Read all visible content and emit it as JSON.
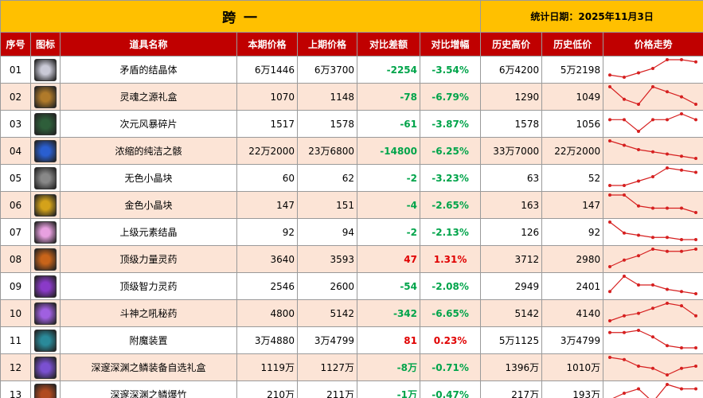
{
  "header": {
    "title": "跨 一",
    "date": "统计日期：2025年11月3日"
  },
  "table": {
    "columns": [
      "序号",
      "图标",
      "道具名称",
      "本期价格",
      "上期价格",
      "对比差额",
      "对比增幅",
      "历史高价",
      "历史低价",
      "价格走势"
    ],
    "rows": [
      {
        "no": "01",
        "name": "矛盾的结晶体",
        "cur": "6万1446",
        "prev": "6万3700",
        "diff": "-2254",
        "pct": "-3.54%",
        "high": "6万4200",
        "low": "5万2198",
        "trend": [
          2,
          1,
          3,
          5,
          9,
          9,
          8
        ]
      },
      {
        "no": "02",
        "name": "灵魂之源礼盒",
        "cur": "1070",
        "prev": "1148",
        "diff": "-78",
        "pct": "-6.79%",
        "high": "1290",
        "low": "1049",
        "trend": [
          8,
          3,
          1,
          8,
          6,
          4,
          1
        ]
      },
      {
        "no": "03",
        "name": "次元风暴碎片",
        "cur": "1517",
        "prev": "1578",
        "diff": "-61",
        "pct": "-3.87%",
        "high": "1578",
        "low": "1056",
        "trend": [
          5,
          5,
          1,
          5,
          5,
          7,
          5
        ]
      },
      {
        "no": "04",
        "name": "浓缩的纯洁之骸",
        "cur": "22万2000",
        "prev": "23万6800",
        "diff": "-14800",
        "pct": "-6.25%",
        "high": "33万7000",
        "low": "22万2000",
        "trend": [
          9,
          7,
          5,
          4,
          3,
          2,
          1
        ]
      },
      {
        "no": "05",
        "name": "无色小晶块",
        "cur": "60",
        "prev": "62",
        "diff": "-2",
        "pct": "-3.23%",
        "high": "63",
        "low": "52",
        "trend": [
          1,
          1,
          3,
          5,
          9,
          8,
          7
        ]
      },
      {
        "no": "06",
        "name": "金色小晶块",
        "cur": "147",
        "prev": "151",
        "diff": "-4",
        "pct": "-2.65%",
        "high": "163",
        "low": "147",
        "trend": [
          9,
          9,
          4,
          3,
          3,
          3,
          1
        ]
      },
      {
        "no": "07",
        "name": "上级元素结晶",
        "cur": "92",
        "prev": "94",
        "diff": "-2",
        "pct": "-2.13%",
        "high": "126",
        "low": "92",
        "trend": [
          9,
          4,
          3,
          2,
          2,
          1,
          1
        ]
      },
      {
        "no": "08",
        "name": "顶级力量灵药",
        "cur": "3640",
        "prev": "3593",
        "diff": "47",
        "pct": "1.31%",
        "high": "3712",
        "low": "2980",
        "trend": [
          1,
          4,
          6,
          9,
          8,
          8,
          9
        ]
      },
      {
        "no": "09",
        "name": "顶级智力灵药",
        "cur": "2546",
        "prev": "2600",
        "diff": "-54",
        "pct": "-2.08%",
        "high": "2949",
        "low": "2401",
        "trend": [
          2,
          9,
          5,
          5,
          3,
          2,
          1
        ]
      },
      {
        "no": "10",
        "name": "斗神之吼秘药",
        "cur": "4800",
        "prev": "5142",
        "diff": "-342",
        "pct": "-6.65%",
        "high": "5142",
        "low": "4140",
        "trend": [
          2,
          4,
          5,
          7,
          9,
          8,
          4
        ]
      },
      {
        "no": "11",
        "name": "附魔装置",
        "cur": "3万4880",
        "prev": "3万4799",
        "diff": "81",
        "pct": "0.23%",
        "high": "5万1125",
        "low": "3万4799",
        "trend": [
          8,
          8,
          9,
          6,
          2,
          1,
          1
        ]
      },
      {
        "no": "12",
        "name": "深邃深渊之鳞装备自选礼盒",
        "cur": "1119万",
        "prev": "1127万",
        "diff": "-8万",
        "pct": "-0.71%",
        "high": "1396万",
        "low": "1010万",
        "trend": [
          9,
          8,
          5,
          4,
          1,
          4,
          5
        ]
      },
      {
        "no": "13",
        "name": "深邃深渊之鳞爆竹",
        "cur": "210万",
        "prev": "211万",
        "diff": "-1万",
        "pct": "-0.47%",
        "high": "217万",
        "low": "193万",
        "trend": [
          2,
          5,
          7,
          1,
          9,
          7,
          7
        ]
      }
    ]
  }
}
